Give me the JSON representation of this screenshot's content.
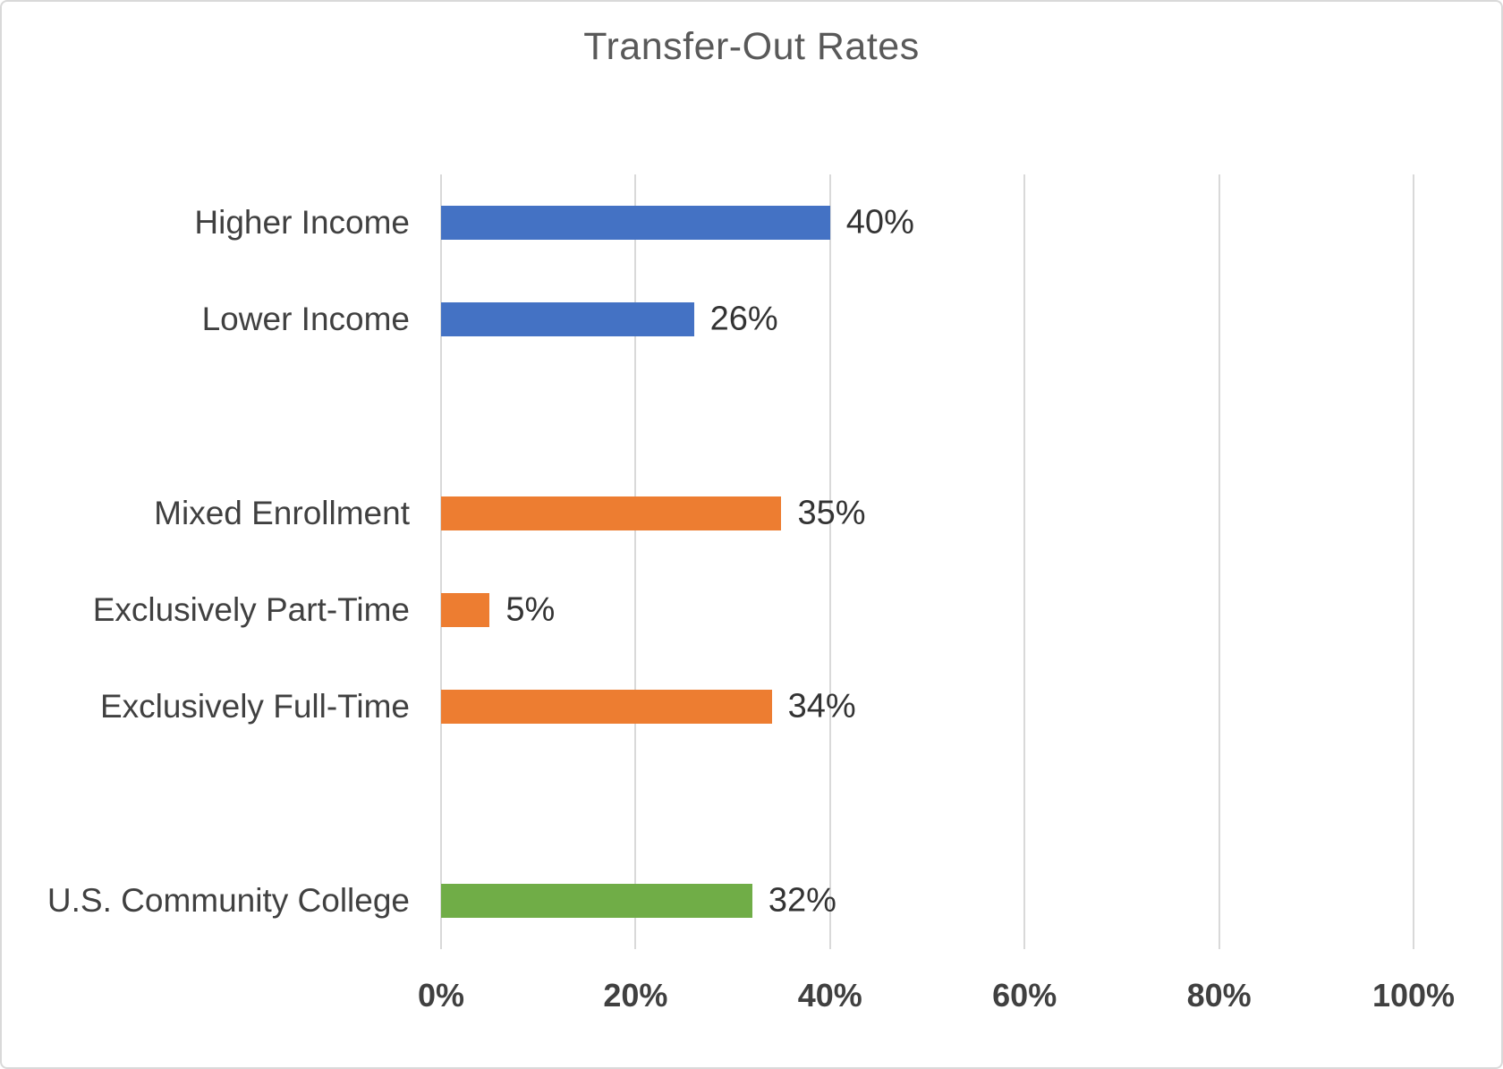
{
  "chart_data": {
    "type": "bar",
    "orientation": "horizontal",
    "title": "Transfer-Out Rates",
    "xlabel": "",
    "ylabel": "",
    "x_ticks": [
      "0%",
      "20%",
      "40%",
      "60%",
      "80%",
      "100%"
    ],
    "x_tick_values": [
      0,
      20,
      40,
      60,
      80,
      100
    ],
    "x_range": [
      0,
      100
    ],
    "grid": true,
    "legend": false,
    "slots_total": 8,
    "bars": [
      {
        "category": "Higher Income",
        "value": 40,
        "label": "40%",
        "color": "#4472C4",
        "slot": 0
      },
      {
        "category": "Lower Income",
        "value": 26,
        "label": "26%",
        "color": "#4472C4",
        "slot": 1
      },
      {
        "category": "Mixed Enrollment",
        "value": 35,
        "label": "35%",
        "color": "#ED7D31",
        "slot": 3
      },
      {
        "category": "Exclusively Part-Time",
        "value": 5,
        "label": "5%",
        "color": "#ED7D31",
        "slot": 4
      },
      {
        "category": "Exclusively Full-Time",
        "value": 34,
        "label": "34%",
        "color": "#ED7D31",
        "slot": 5
      },
      {
        "category": "U.S. Community College",
        "value": 32,
        "label": "32%",
        "color": "#70AD47",
        "slot": 7
      }
    ],
    "series_colors": {
      "income_group": "#4472C4",
      "enrollment_status": "#ED7D31",
      "overall": "#70AD47"
    },
    "gridline_color": "#D9D9D9",
    "border_color": "#D9D9D9",
    "title_color": "#595959",
    "label_color": "#404040"
  }
}
